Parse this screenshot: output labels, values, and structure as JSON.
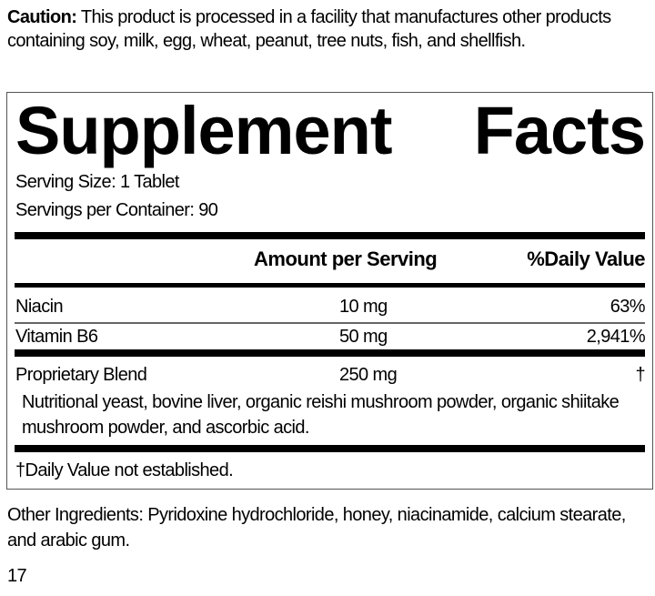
{
  "caution": {
    "label": "Caution:",
    "text": " This product is processed in a facility that manufactures other products containing soy, milk, egg, wheat, peanut, tree nuts, fish, and shellfish."
  },
  "facts": {
    "title_word1": "Supplement",
    "title_word2": "Facts",
    "serving_size": "Serving Size: 1 Tablet",
    "servings_per_container": "Servings per Container: 90",
    "header": {
      "amount": "Amount per Serving",
      "daily_value": "%Daily Value"
    },
    "rows": [
      {
        "name": "Niacin",
        "amount": "10 mg",
        "dv": "63%"
      },
      {
        "name": "Vitamin B6",
        "amount": "50 mg",
        "dv": "2,941%"
      },
      {
        "name": "Proprietary Blend",
        "amount": "250 mg",
        "dv": "†"
      }
    ],
    "blend_ingredients": "Nutritional yeast, bovine liver, organic reishi mushroom powder, organic shiitake mushroom powder, and ascorbic acid.",
    "footnote": "†Daily Value not established."
  },
  "other_ingredients": "Other Ingredients: Pyridoxine hydrochloride, honey, niacinamide, calcium stearate, and arabic gum.",
  "page_number": "17"
}
